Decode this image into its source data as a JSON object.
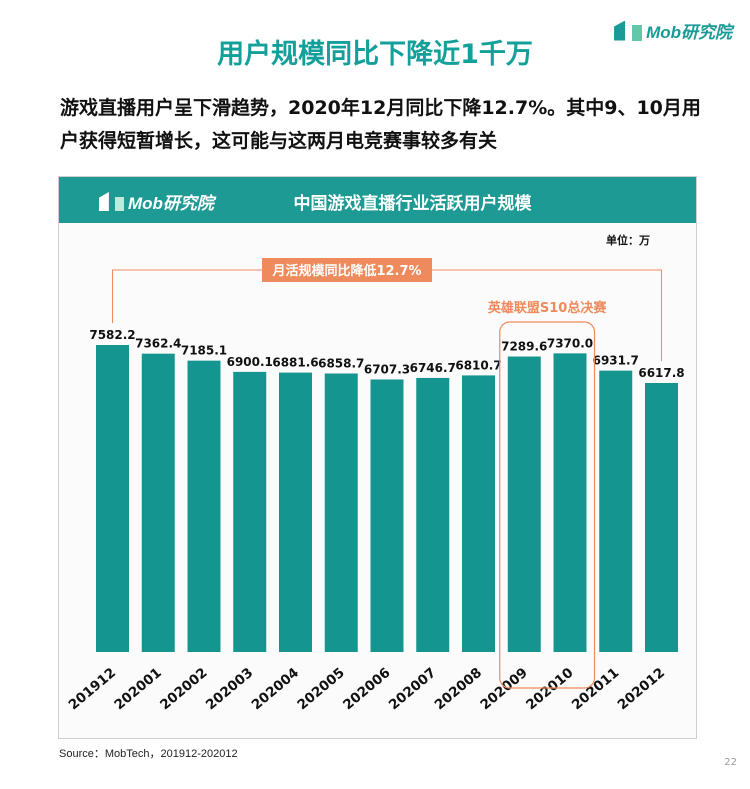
{
  "header": {
    "logo_text": "Mob研究院",
    "title": "用户规模同比下降近1千万",
    "subtitle": "游戏直播用户呈下滑趋势，2020年12月同比下降12.7%。其中9、10月用户获得短暂增长，这可能与这两月电竞赛事较多有关"
  },
  "chart_panel": {
    "logo_text": "Mob研究院",
    "title": "中国游戏直播行业活跃用户规模",
    "unit": "单位：万"
  },
  "chart_data": {
    "type": "bar",
    "title": "中国游戏直播行业活跃用户规模",
    "unit": "单位：万",
    "categories": [
      "201912",
      "202001",
      "202002",
      "202003",
      "202004",
      "202005",
      "202006",
      "202007",
      "202008",
      "202009",
      "202010",
      "202011",
      "202012"
    ],
    "values": [
      7582.2,
      7362.4,
      7185.1,
      6900.1,
      6881.6,
      6858.7,
      6707.3,
      6746.7,
      6810.7,
      7289.6,
      7370.0,
      6931.7,
      6617.8
    ],
    "value_labels": [
      "7582.2",
      "7362.4",
      "7185.1",
      "6900.1",
      "6881.6",
      "6858.7",
      "6707.3",
      "6746.7",
      "6810.7",
      "7289.6",
      "7370.0",
      "6931.7",
      "6617.8"
    ],
    "bar_color": "#14958f",
    "annotations": {
      "yoy_label": "月活规模同比降低12.7%",
      "highlight_label": "英雄联盟S10总决赛",
      "highlight_color": "#ef8a5c"
    }
  },
  "footer": {
    "source": "Source：MobTech，201912-202012",
    "page_number": "22"
  }
}
